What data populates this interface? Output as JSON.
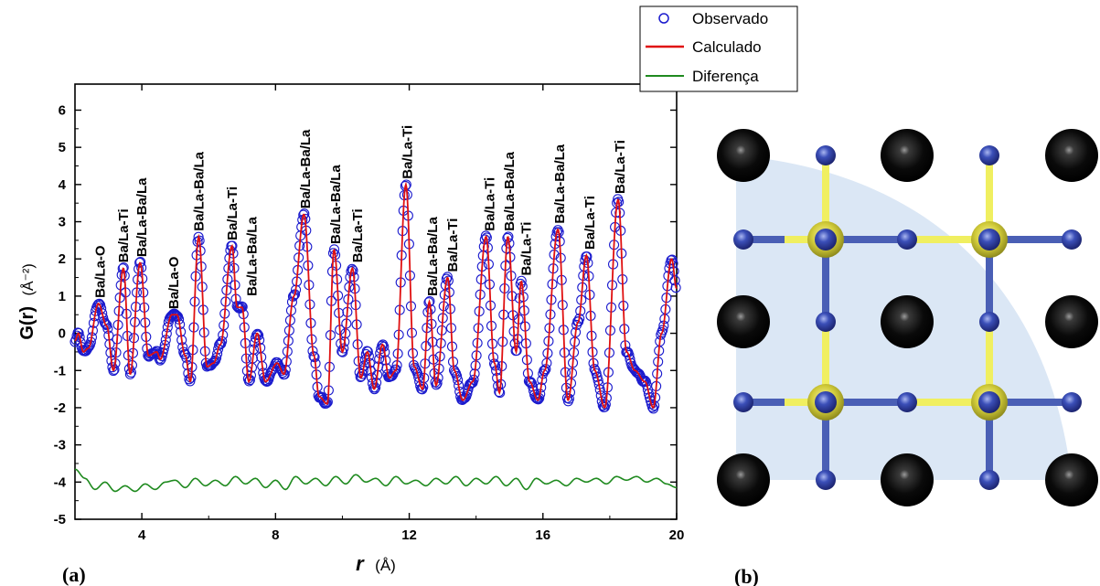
{
  "chart_data": [
    {
      "type": "line",
      "panel_label": "(a)",
      "xlabel": {
        "symbol": "r",
        "unit": "(Å)"
      },
      "ylabel": {
        "symbol": "G(r)",
        "unit": "(Å⁻²)"
      },
      "xlim": [
        2,
        20
      ],
      "ylim": [
        -5,
        6.7
      ],
      "x_ticks": [
        4,
        8,
        12,
        16,
        20
      ],
      "x_tick_labels": [
        "4",
        "8",
        "12",
        "16",
        "20"
      ],
      "y_ticks": [
        -5,
        -4,
        -3,
        -2,
        -1,
        0,
        1,
        2,
        3,
        4,
        5,
        6
      ],
      "y_tick_labels": [
        "-5",
        "-4",
        "-3",
        "-2",
        "-1",
        "0",
        "1",
        "2",
        "3",
        "4",
        "5",
        "6"
      ],
      "grid": false,
      "legend_position": "top-right",
      "series": [
        {
          "name": "Observado",
          "style": "open-circle",
          "color": "#1a1acd"
        },
        {
          "name": "Calculado",
          "style": "line",
          "color": "#e01010"
        },
        {
          "name": "Diferença",
          "style": "line",
          "color": "#1f8a1f"
        }
      ],
      "profile_points": [
        [
          2.0,
          -0.2
        ],
        [
          2.1,
          0.0
        ],
        [
          2.25,
          -0.5
        ],
        [
          2.4,
          -0.4
        ],
        [
          2.7,
          0.8
        ],
        [
          2.95,
          0.2
        ],
        [
          3.15,
          -1.0
        ],
        [
          3.45,
          1.75
        ],
        [
          3.65,
          -1.1
        ],
        [
          3.95,
          1.9
        ],
        [
          4.2,
          -0.6
        ],
        [
          4.45,
          -0.5
        ],
        [
          4.55,
          -0.7
        ],
        [
          4.9,
          0.5
        ],
        [
          5.05,
          0.5
        ],
        [
          5.3,
          -0.6
        ],
        [
          5.45,
          -1.3
        ],
        [
          5.7,
          2.6
        ],
        [
          5.95,
          -0.9
        ],
        [
          6.15,
          -0.8
        ],
        [
          6.35,
          -0.3
        ],
        [
          6.7,
          2.35
        ],
        [
          6.85,
          0.7
        ],
        [
          7.0,
          0.7
        ],
        [
          7.2,
          -1.3
        ],
        [
          7.45,
          0.0
        ],
        [
          7.7,
          -1.3
        ],
        [
          8.05,
          -0.8
        ],
        [
          8.25,
          -1.1
        ],
        [
          8.55,
          1.0
        ],
        [
          8.85,
          3.2
        ],
        [
          9.15,
          -0.6
        ],
        [
          9.3,
          -1.7
        ],
        [
          9.55,
          -1.9
        ],
        [
          9.75,
          2.25
        ],
        [
          10.0,
          -0.5
        ],
        [
          10.3,
          1.75
        ],
        [
          10.55,
          -1.2
        ],
        [
          10.75,
          -0.5
        ],
        [
          10.95,
          -1.5
        ],
        [
          11.2,
          -0.3
        ],
        [
          11.4,
          -1.2
        ],
        [
          11.6,
          -1.0
        ],
        [
          11.9,
          4.0
        ],
        [
          12.15,
          -0.9
        ],
        [
          12.4,
          -1.5
        ],
        [
          12.6,
          0.85
        ],
        [
          12.8,
          -1.4
        ],
        [
          13.15,
          1.5
        ],
        [
          13.35,
          -1.0
        ],
        [
          13.6,
          -1.8
        ],
        [
          13.9,
          -1.3
        ],
        [
          14.3,
          2.6
        ],
        [
          14.55,
          -0.8
        ],
        [
          14.7,
          -1.6
        ],
        [
          14.95,
          2.6
        ],
        [
          15.2,
          -0.5
        ],
        [
          15.35,
          1.4
        ],
        [
          15.6,
          -1.3
        ],
        [
          15.85,
          -1.8
        ],
        [
          16.05,
          -1.0
        ],
        [
          16.45,
          2.8
        ],
        [
          16.75,
          -1.8
        ],
        [
          17.05,
          0.3
        ],
        [
          17.3,
          2.1
        ],
        [
          17.55,
          -1.0
        ],
        [
          17.85,
          -2.0
        ],
        [
          18.25,
          3.6
        ],
        [
          18.5,
          -0.5
        ],
        [
          18.75,
          -1.0
        ],
        [
          19.05,
          -1.3
        ],
        [
          19.3,
          -2.0
        ],
        [
          19.55,
          0.0
        ],
        [
          19.85,
          2.0
        ],
        [
          20.0,
          1.2
        ]
      ],
      "difference_points": [
        [
          2.0,
          -3.65
        ],
        [
          2.3,
          -3.9
        ],
        [
          2.6,
          -4.2
        ],
        [
          2.9,
          -4.0
        ],
        [
          3.2,
          -4.25
        ],
        [
          3.5,
          -4.1
        ],
        [
          3.8,
          -4.25
        ],
        [
          4.1,
          -4.05
        ],
        [
          4.4,
          -4.2
        ],
        [
          4.7,
          -4.0
        ],
        [
          5.0,
          -3.95
        ],
        [
          5.3,
          -4.15
        ],
        [
          5.6,
          -3.9
        ],
        [
          5.9,
          -4.1
        ],
        [
          6.2,
          -3.95
        ],
        [
          6.5,
          -4.1
        ],
        [
          6.8,
          -3.85
        ],
        [
          7.1,
          -4.05
        ],
        [
          7.4,
          -3.9
        ],
        [
          7.7,
          -4.15
        ],
        [
          8.0,
          -3.95
        ],
        [
          8.3,
          -4.2
        ],
        [
          8.6,
          -3.85
        ],
        [
          8.9,
          -4.05
        ],
        [
          9.2,
          -3.9
        ],
        [
          9.5,
          -4.1
        ],
        [
          9.8,
          -3.85
        ],
        [
          10.1,
          -4.05
        ],
        [
          10.4,
          -3.8
        ],
        [
          10.7,
          -4.0
        ],
        [
          11.0,
          -3.9
        ],
        [
          11.3,
          -4.1
        ],
        [
          11.6,
          -3.85
        ],
        [
          11.9,
          -4.05
        ],
        [
          12.2,
          -3.95
        ],
        [
          12.5,
          -4.1
        ],
        [
          12.8,
          -3.9
        ],
        [
          13.1,
          -4.05
        ],
        [
          13.4,
          -3.85
        ],
        [
          13.7,
          -4.1
        ],
        [
          14.0,
          -3.9
        ],
        [
          14.3,
          -4.05
        ],
        [
          14.6,
          -3.85
        ],
        [
          14.9,
          -4.1
        ],
        [
          15.2,
          -3.9
        ],
        [
          15.5,
          -4.2
        ],
        [
          15.8,
          -3.9
        ],
        [
          16.1,
          -4.05
        ],
        [
          16.4,
          -3.95
        ],
        [
          16.7,
          -4.1
        ],
        [
          17.0,
          -3.9
        ],
        [
          17.3,
          -4.0
        ],
        [
          17.6,
          -3.9
        ],
        [
          17.9,
          -4.05
        ],
        [
          18.2,
          -3.85
        ],
        [
          18.5,
          -3.95
        ],
        [
          18.8,
          -3.85
        ],
        [
          19.1,
          -4.0
        ],
        [
          19.4,
          -3.9
        ],
        [
          19.7,
          -4.05
        ],
        [
          20.0,
          -4.15
        ]
      ],
      "annotations": [
        {
          "text": "Ba/La-O",
          "x": 2.75,
          "y": 0.95
        },
        {
          "text": "Ba/La-Ti",
          "x": 3.45,
          "y": 1.9
        },
        {
          "text": "Ba/La-Ba/La",
          "x": 4.0,
          "y": 2.05
        },
        {
          "text": "Ba/La-O",
          "x": 4.95,
          "y": 0.65
        },
        {
          "text": "Ba/La-Ba/La",
          "x": 5.7,
          "y": 2.75
        },
        {
          "text": "Ba/La-Ti",
          "x": 6.7,
          "y": 2.5
        },
        {
          "text": "Ba/La-Ba/La",
          "x": 7.3,
          "y": 1.0
        },
        {
          "text": "Ba/La-Ba/La",
          "x": 8.9,
          "y": 3.35
        },
        {
          "text": "Ba/La-Ba/La",
          "x": 9.8,
          "y": 2.4
        },
        {
          "text": "Ba/La-Ti",
          "x": 10.45,
          "y": 1.9
        },
        {
          "text": "Ba/La-Ti",
          "x": 11.95,
          "y": 4.15
        },
        {
          "text": "Ba/La-Ba/La",
          "x": 12.7,
          "y": 1.0
        },
        {
          "text": "Ba/La-Ti",
          "x": 13.3,
          "y": 1.65
        },
        {
          "text": "Ba/La-Ti",
          "x": 14.4,
          "y": 2.75
        },
        {
          "text": "Ba/La-Ba/La",
          "x": 15.0,
          "y": 2.75
        },
        {
          "text": "Ba/La-Ti",
          "x": 15.5,
          "y": 1.55
        },
        {
          "text": "Ba/La-Ba/La",
          "x": 16.5,
          "y": 2.95
        },
        {
          "text": "Ba/La-Ti",
          "x": 17.4,
          "y": 2.25
        },
        {
          "text": "Ba/La-Ti",
          "x": 18.3,
          "y": 3.75
        }
      ]
    }
  ],
  "structure_panel": {
    "panel_label": "(b)",
    "colors": {
      "large_atom": "#111111",
      "small_atom": "#3a4db0",
      "yellow_atom": "#d8d23a",
      "background_quadrant": "#dbe7f5",
      "bond_yellow": "#f0ef60",
      "bond_blue": "#4a5fb5"
    }
  }
}
